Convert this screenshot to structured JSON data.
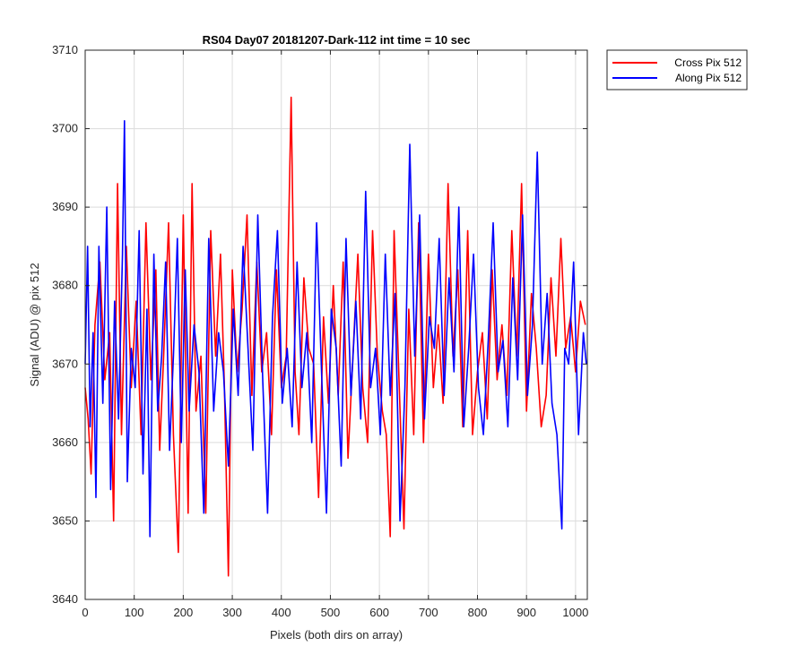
{
  "chart_data": {
    "type": "line",
    "title": "RS04 Day07 20181207-Dark-112 int time = 10 sec",
    "xlabel": "Pixels (both dirs on array)",
    "ylabel": "Signal (ADU) @ pix 512",
    "xlim": [
      0,
      1024
    ],
    "ylim": [
      3640,
      3710
    ],
    "xticks": [
      0,
      100,
      200,
      300,
      400,
      500,
      600,
      700,
      800,
      900,
      1000
    ],
    "yticks": [
      3640,
      3650,
      3660,
      3670,
      3680,
      3690,
      3700,
      3710
    ],
    "grid": true,
    "legend_position": "outside-top-right",
    "series": [
      {
        "name": "Cross Pix 512",
        "color": "#ff0000",
        "points_described": "noise around mean ~3672, range ~3643-3704",
        "x": [
          0,
          6,
          12,
          20,
          30,
          40,
          50,
          58,
          66,
          74,
          84,
          94,
          104,
          114,
          124,
          134,
          144,
          152,
          160,
          170,
          180,
          190,
          200,
          210,
          218,
          226,
          236,
          246,
          256,
          266,
          276,
          284,
          292,
          300,
          310,
          320,
          330,
          340,
          350,
          360,
          370,
          380,
          390,
          400,
          410,
          420,
          428,
          436,
          446,
          456,
          466,
          476,
          486,
          496,
          506,
          516,
          526,
          536,
          546,
          556,
          566,
          576,
          586,
          596,
          606,
          614,
          622,
          630,
          640,
          650,
          660,
          670,
          680,
          690,
          700,
          710,
          720,
          730,
          740,
          750,
          760,
          770,
          780,
          790,
          800,
          810,
          820,
          830,
          840,
          850,
          860,
          870,
          880,
          890,
          900,
          910,
          920,
          930,
          940,
          950,
          960,
          970,
          980,
          990,
          1000,
          1010,
          1020
        ],
        "y": [
          3667,
          3663,
          3656,
          3675,
          3683,
          3668,
          3674,
          3650,
          3693,
          3661,
          3685,
          3667,
          3678,
          3661,
          3688,
          3668,
          3682,
          3659,
          3671,
          3688,
          3661,
          3646,
          3689,
          3651,
          3693,
          3664,
          3671,
          3651,
          3687,
          3671,
          3684,
          3667,
          3643,
          3682,
          3669,
          3677,
          3689,
          3666,
          3683,
          3669,
          3674,
          3661,
          3682,
          3667,
          3671,
          3704,
          3669,
          3661,
          3681,
          3672,
          3670,
          3653,
          3676,
          3665,
          3680,
          3666,
          3683,
          3658,
          3671,
          3684,
          3667,
          3660,
          3687,
          3671,
          3664,
          3661,
          3648,
          3687,
          3668,
          3649,
          3677,
          3661,
          3688,
          3660,
          3684,
          3667,
          3675,
          3665,
          3693,
          3671,
          3682,
          3662,
          3687,
          3661,
          3669,
          3674,
          3663,
          3682,
          3668,
          3675,
          3666,
          3687,
          3671,
          3693,
          3664,
          3679,
          3672,
          3662,
          3666,
          3681,
          3671,
          3686,
          3672,
          3676,
          3669,
          3678,
          3675
        ]
      },
      {
        "name": "Along Pix 512",
        "color": "#0000ff",
        "x": [
          0,
          5,
          10,
          16,
          22,
          28,
          36,
          44,
          52,
          60,
          68,
          76,
          80,
          86,
          94,
          102,
          110,
          118,
          126,
          132,
          140,
          148,
          156,
          164,
          172,
          180,
          188,
          196,
          204,
          212,
          222,
          232,
          242,
          252,
          262,
          272,
          282,
          292,
          302,
          312,
          322,
          332,
          342,
          352,
          362,
          372,
          382,
          392,
          402,
          412,
          422,
          432,
          442,
          452,
          462,
          472,
          482,
          492,
          502,
          512,
          522,
          532,
          542,
          552,
          562,
          572,
          582,
          592,
          602,
          612,
          622,
          632,
          642,
          652,
          662,
          672,
          682,
          692,
          702,
          712,
          722,
          732,
          742,
          752,
          762,
          772,
          782,
          792,
          802,
          812,
          822,
          832,
          842,
          852,
          862,
          872,
          882,
          892,
          902,
          912,
          922,
          932,
          942,
          952,
          962,
          972,
          978,
          986,
          996,
          1006,
          1016,
          1022
        ],
        "y": [
          3670,
          3685,
          3662,
          3674,
          3653,
          3685,
          3665,
          3690,
          3654,
          3678,
          3663,
          3684,
          3701,
          3655,
          3672,
          3667,
          3687,
          3656,
          3677,
          3648,
          3684,
          3664,
          3671,
          3683,
          3659,
          3671,
          3686,
          3660,
          3682,
          3664,
          3675,
          3669,
          3651,
          3686,
          3664,
          3674,
          3669,
          3657,
          3677,
          3666,
          3685,
          3672,
          3659,
          3689,
          3668,
          3651,
          3676,
          3687,
          3665,
          3672,
          3662,
          3683,
          3667,
          3674,
          3660,
          3688,
          3669,
          3651,
          3677,
          3672,
          3657,
          3686,
          3666,
          3678,
          3663,
          3692,
          3667,
          3672,
          3661,
          3684,
          3666,
          3679,
          3650,
          3667,
          3698,
          3671,
          3689,
          3663,
          3676,
          3672,
          3686,
          3666,
          3681,
          3669,
          3690,
          3662,
          3672,
          3684,
          3667,
          3661,
          3673,
          3688,
          3669,
          3673,
          3662,
          3681,
          3668,
          3689,
          3666,
          3675,
          3697,
          3670,
          3679,
          3665,
          3661,
          3649,
          3672,
          3670,
          3683,
          3661,
          3674,
          3670
        ]
      }
    ]
  }
}
